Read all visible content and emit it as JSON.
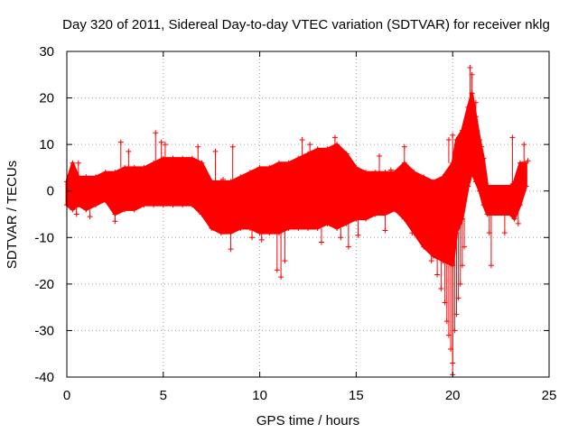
{
  "chart_data": {
    "type": "scatter",
    "title": "Day 320 of 2011, Sidereal Day-to-day VTEC variation (SDTVAR) for receiver nklg",
    "xlabel": "GPS time / hours",
    "ylabel": "SDTVAR / TECUs",
    "xlim": [
      0,
      25
    ],
    "ylim": [
      -40,
      30
    ],
    "xticks": [
      0,
      5,
      10,
      15,
      20,
      25
    ],
    "yticks": [
      -40,
      -30,
      -20,
      -10,
      0,
      10,
      20,
      30
    ],
    "grid": true,
    "marker": "plus",
    "color": "#ff0000",
    "series": [
      {
        "name": "SDTVAR",
        "band": [
          [
            0.0,
            -3,
            2
          ],
          [
            0.3,
            -4,
            6
          ],
          [
            0.6,
            -3,
            3
          ],
          [
            1.0,
            -4,
            3
          ],
          [
            1.5,
            -3,
            3
          ],
          [
            2.0,
            -2,
            4
          ],
          [
            2.5,
            -5,
            4
          ],
          [
            3.0,
            -4,
            5
          ],
          [
            3.5,
            -4,
            5
          ],
          [
            4.0,
            -3,
            5
          ],
          [
            4.5,
            -3,
            6
          ],
          [
            5.0,
            -3,
            7
          ],
          [
            5.5,
            -3,
            7
          ],
          [
            6.0,
            -3,
            7
          ],
          [
            6.5,
            -3,
            7
          ],
          [
            7.0,
            -5,
            6
          ],
          [
            7.5,
            -8,
            2
          ],
          [
            8.0,
            -9,
            2
          ],
          [
            8.5,
            -9,
            2
          ],
          [
            9.0,
            -8,
            3
          ],
          [
            9.5,
            -8,
            4
          ],
          [
            10.0,
            -9,
            5
          ],
          [
            10.5,
            -9,
            5
          ],
          [
            11.0,
            -9,
            6
          ],
          [
            11.5,
            -8,
            6
          ],
          [
            12.0,
            -8,
            7
          ],
          [
            12.5,
            -8,
            8
          ],
          [
            13.0,
            -8,
            9
          ],
          [
            13.5,
            -7,
            9
          ],
          [
            14.0,
            -8,
            10
          ],
          [
            14.5,
            -7,
            8
          ],
          [
            15.0,
            -6,
            5
          ],
          [
            15.5,
            -6,
            4
          ],
          [
            16.0,
            -5,
            4
          ],
          [
            16.5,
            -5,
            4
          ],
          [
            17.0,
            -4,
            4
          ],
          [
            17.5,
            -6,
            6
          ],
          [
            18.0,
            -9,
            4
          ],
          [
            18.5,
            -12,
            3
          ],
          [
            19.0,
            -14,
            2
          ],
          [
            19.5,
            -15,
            3
          ],
          [
            20.0,
            -16,
            6
          ],
          [
            20.2,
            -9,
            11
          ],
          [
            20.5,
            -6,
            13
          ],
          [
            20.8,
            1,
            18
          ],
          [
            21.0,
            4,
            21
          ],
          [
            21.2,
            2,
            16
          ],
          [
            21.4,
            0,
            11
          ],
          [
            21.6,
            -3,
            7
          ],
          [
            21.8,
            -5,
            1
          ],
          [
            23.0,
            -5,
            1
          ],
          [
            23.2,
            -6,
            2
          ],
          [
            23.5,
            -3,
            6
          ],
          [
            23.8,
            1,
            6
          ]
        ],
        "outliers": [
          [
            0.5,
            -5.0
          ],
          [
            0.6,
            6.0
          ],
          [
            1.2,
            -5.5
          ],
          [
            2.5,
            -6.5
          ],
          [
            2.8,
            10.5
          ],
          [
            3.2,
            8.5
          ],
          [
            4.6,
            12.5
          ],
          [
            4.9,
            10.5
          ],
          [
            5.1,
            10.0
          ],
          [
            6.8,
            9.5
          ],
          [
            7.7,
            8.5
          ],
          [
            8.1,
            2.5
          ],
          [
            8.6,
            9.5
          ],
          [
            8.5,
            -12.5
          ],
          [
            9.6,
            -10.0
          ],
          [
            10.1,
            -10.5
          ],
          [
            10.9,
            -17.0
          ],
          [
            11.1,
            -18.5
          ],
          [
            11.3,
            -15.0
          ],
          [
            12.2,
            11.0
          ],
          [
            12.6,
            10.0
          ],
          [
            13.2,
            -11.0
          ],
          [
            13.9,
            11.5
          ],
          [
            14.6,
            -12.0
          ],
          [
            15.1,
            -9.5
          ],
          [
            16.2,
            7.5
          ],
          [
            16.8,
            4.5
          ],
          [
            17.5,
            9.5
          ],
          [
            18.4,
            -11.0
          ],
          [
            18.9,
            -15.0
          ],
          [
            19.2,
            -18.0
          ],
          [
            19.4,
            -21.0
          ],
          [
            19.6,
            -24.0
          ],
          [
            19.7,
            -28.0
          ],
          [
            19.8,
            -31.0
          ],
          [
            19.9,
            -34.0
          ],
          [
            20.0,
            -37.0
          ],
          [
            20.0,
            -39.5
          ],
          [
            20.1,
            -30.0
          ],
          [
            20.2,
            -26.5
          ],
          [
            20.3,
            -23.0
          ],
          [
            20.4,
            -20.0
          ],
          [
            20.5,
            -16.0
          ],
          [
            20.6,
            -12.0
          ],
          [
            19.8,
            11.0
          ],
          [
            20.0,
            12.0
          ],
          [
            20.9,
            26.5
          ],
          [
            21.0,
            25.0
          ],
          [
            21.2,
            19.0
          ],
          [
            21.5,
            9.5
          ],
          [
            21.9,
            -9.0
          ],
          [
            22.0,
            -16.0
          ],
          [
            22.3,
            -4.5
          ],
          [
            23.1,
            11.5
          ],
          [
            23.4,
            -7.0
          ],
          [
            23.7,
            10.0
          ],
          [
            23.9,
            6.5
          ],
          [
            23.3,
            -4.0
          ],
          [
            22.7,
            -9.0
          ],
          [
            17.9,
            -9.0
          ],
          [
            16.5,
            -8.5
          ],
          [
            14.2,
            -10.0
          ]
        ]
      }
    ]
  }
}
